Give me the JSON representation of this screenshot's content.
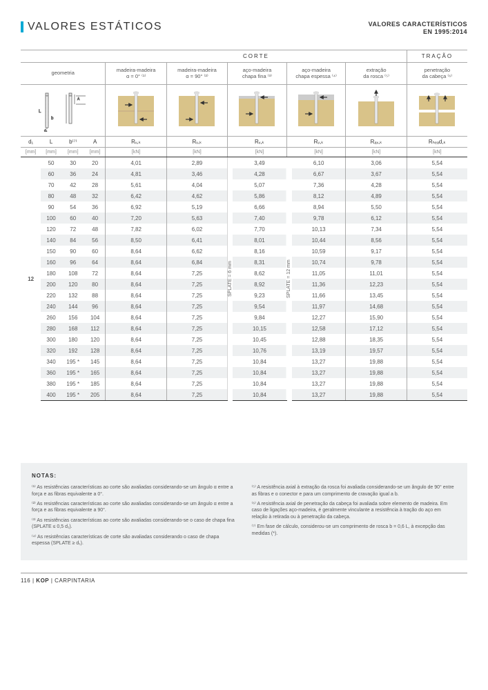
{
  "header": {
    "title": "VALORES ESTÁTICOS",
    "right1": "VALORES CARACTERÍSTICOS",
    "right2": "EN 1995:2014"
  },
  "sections": {
    "corte": "CORTE",
    "tracao": "TRAÇÃO"
  },
  "cols": {
    "geom": "geometria",
    "c1a": "madeira-madeira",
    "c1b": "α = 0° ⁽¹⁾",
    "c2a": "madeira-madeira",
    "c2b": "α = 90° ⁽²⁾",
    "c3a": "aço-madeira",
    "c3b": "chapa fina ⁽³⁾",
    "c4a": "aço-madeira",
    "c4b": "chapa espessa ⁽⁴⁾",
    "c5a": "extração",
    "c5b": "da rosca ⁽⁵⁾",
    "c6a": "penetração",
    "c6b": "da cabeça ⁽⁶⁾"
  },
  "vars": {
    "d1": "d₁",
    "L": "L",
    "b": "b⁽⁷⁾",
    "A": "A",
    "rvk": "Rᵥ,ₖ",
    "rax": "Rₐₓ,ₖ",
    "rhead": "Rₕₑₐd,ₖ",
    "mm": "[mm]",
    "kn": "[kN]"
  },
  "d1_val": "12",
  "splate6": "SPLATE = 6 mm",
  "splate12": "SPLATE = 12 mm",
  "rows": [
    {
      "L": "50",
      "b": "30",
      "A": "20",
      "v1": "4,01",
      "v2": "2,89",
      "v3": "3,49",
      "v4": "6,10",
      "v5": "3,06",
      "v6": "5,54"
    },
    {
      "L": "60",
      "b": "36",
      "A": "24",
      "v1": "4,81",
      "v2": "3,46",
      "v3": "4,28",
      "v4": "6,67",
      "v5": "3,67",
      "v6": "5,54"
    },
    {
      "L": "70",
      "b": "42",
      "A": "28",
      "v1": "5,61",
      "v2": "4,04",
      "v3": "5,07",
      "v4": "7,36",
      "v5": "4,28",
      "v6": "5,54"
    },
    {
      "L": "80",
      "b": "48",
      "A": "32",
      "v1": "6,42",
      "v2": "4,62",
      "v3": "5,86",
      "v4": "8,12",
      "v5": "4,89",
      "v6": "5,54"
    },
    {
      "L": "90",
      "b": "54",
      "A": "36",
      "v1": "6,92",
      "v2": "5,19",
      "v3": "6,66",
      "v4": "8,94",
      "v5": "5,50",
      "v6": "5,54"
    },
    {
      "L": "100",
      "b": "60",
      "A": "40",
      "v1": "7,20",
      "v2": "5,63",
      "v3": "7,40",
      "v4": "9,78",
      "v5": "6,12",
      "v6": "5,54"
    },
    {
      "L": "120",
      "b": "72",
      "A": "48",
      "v1": "7,82",
      "v2": "6,02",
      "v3": "7,70",
      "v4": "10,13",
      "v5": "7,34",
      "v6": "5,54"
    },
    {
      "L": "140",
      "b": "84",
      "A": "56",
      "v1": "8,50",
      "v2": "6,41",
      "v3": "8,01",
      "v4": "10,44",
      "v5": "8,56",
      "v6": "5,54"
    },
    {
      "L": "150",
      "b": "90",
      "A": "60",
      "v1": "8,64",
      "v2": "6,62",
      "v3": "8,16",
      "v4": "10,59",
      "v5": "9,17",
      "v6": "5,54"
    },
    {
      "L": "160",
      "b": "96",
      "A": "64",
      "v1": "8,64",
      "v2": "6,84",
      "v3": "8,31",
      "v4": "10,74",
      "v5": "9,78",
      "v6": "5,54"
    },
    {
      "L": "180",
      "b": "108",
      "A": "72",
      "v1": "8,64",
      "v2": "7,25",
      "v3": "8,62",
      "v4": "11,05",
      "v5": "11,01",
      "v6": "5,54"
    },
    {
      "L": "200",
      "b": "120",
      "A": "80",
      "v1": "8,64",
      "v2": "7,25",
      "v3": "8,92",
      "v4": "11,36",
      "v5": "12,23",
      "v6": "5,54"
    },
    {
      "L": "220",
      "b": "132",
      "A": "88",
      "v1": "8,64",
      "v2": "7,25",
      "v3": "9,23",
      "v4": "11,66",
      "v5": "13,45",
      "v6": "5,54"
    },
    {
      "L": "240",
      "b": "144",
      "A": "96",
      "v1": "8,64",
      "v2": "7,25",
      "v3": "9,54",
      "v4": "11,97",
      "v5": "14,68",
      "v6": "5,54"
    },
    {
      "L": "260",
      "b": "156",
      "A": "104",
      "v1": "8,64",
      "v2": "7,25",
      "v3": "9,84",
      "v4": "12,27",
      "v5": "15,90",
      "v6": "5,54"
    },
    {
      "L": "280",
      "b": "168",
      "A": "112",
      "v1": "8,64",
      "v2": "7,25",
      "v3": "10,15",
      "v4": "12,58",
      "v5": "17,12",
      "v6": "5,54"
    },
    {
      "L": "300",
      "b": "180",
      "A": "120",
      "v1": "8,64",
      "v2": "7,25",
      "v3": "10,45",
      "v4": "12,88",
      "v5": "18,35",
      "v6": "5,54"
    },
    {
      "L": "320",
      "b": "192",
      "A": "128",
      "v1": "8,64",
      "v2": "7,25",
      "v3": "10,76",
      "v4": "13,19",
      "v5": "19,57",
      "v6": "5,54"
    },
    {
      "L": "340",
      "b": "195 *",
      "A": "145",
      "v1": "8,64",
      "v2": "7,25",
      "v3": "10,84",
      "v4": "13,27",
      "v5": "19,88",
      "v6": "5,54"
    },
    {
      "L": "360",
      "b": "195 *",
      "A": "165",
      "v1": "8,64",
      "v2": "7,25",
      "v3": "10,84",
      "v4": "13,27",
      "v5": "19,88",
      "v6": "5,54"
    },
    {
      "L": "380",
      "b": "195 *",
      "A": "185",
      "v1": "8,64",
      "v2": "7,25",
      "v3": "10,84",
      "v4": "13,27",
      "v5": "19,88",
      "v6": "5,54"
    },
    {
      "L": "400",
      "b": "195 *",
      "A": "205",
      "v1": "8,64",
      "v2": "7,25",
      "v3": "10,84",
      "v4": "13,27",
      "v5": "19,88",
      "v6": "5,54"
    }
  ],
  "notes": {
    "title": "NOTAS:",
    "left": [
      "⁽¹⁾ As resistências características ao corte são avaliadas considerando-se um ângulo α entre a força e as fibras equivalente a 0°.",
      "⁽²⁾ As resistências características ao corte são avaliadas considerando-se um ângulo α entre a força e as fibras equivalente a 90°.",
      "⁽³⁾ As resistências características ao corte são avaliadas considerando-se o caso de chapa fina (SPLATE ≤ 0,5 d₁).",
      "⁽⁴⁾ As resistências características de corte são avaliadas considerando o caso de chapa espessa (SPLATE ≥ d₁)."
    ],
    "right": [
      "⁽⁵⁾ A resistência axial à extração da rosca foi avaliada considerando-se um ângulo de 90° entre as fibras e o conector e para um comprimento de cravação igual a b.",
      "⁽⁶⁾ A resistência axial de penetração da cabeça foi avaliada sobre elemento de madeira. Em caso de ligações aço-madeira, é geralmente vinculante a resistência à tração do aço em relação à retirada ou à penetração da cabeça.",
      "⁽⁷⁾ Em fase de cálculo, considerou-se um comprimento de rosca b = 0,6 L, à excepção das medidas (*)."
    ]
  },
  "footer": {
    "page": "116",
    "sep": " | ",
    "brand": "KOP",
    "sect": "CARPINTARIA"
  }
}
